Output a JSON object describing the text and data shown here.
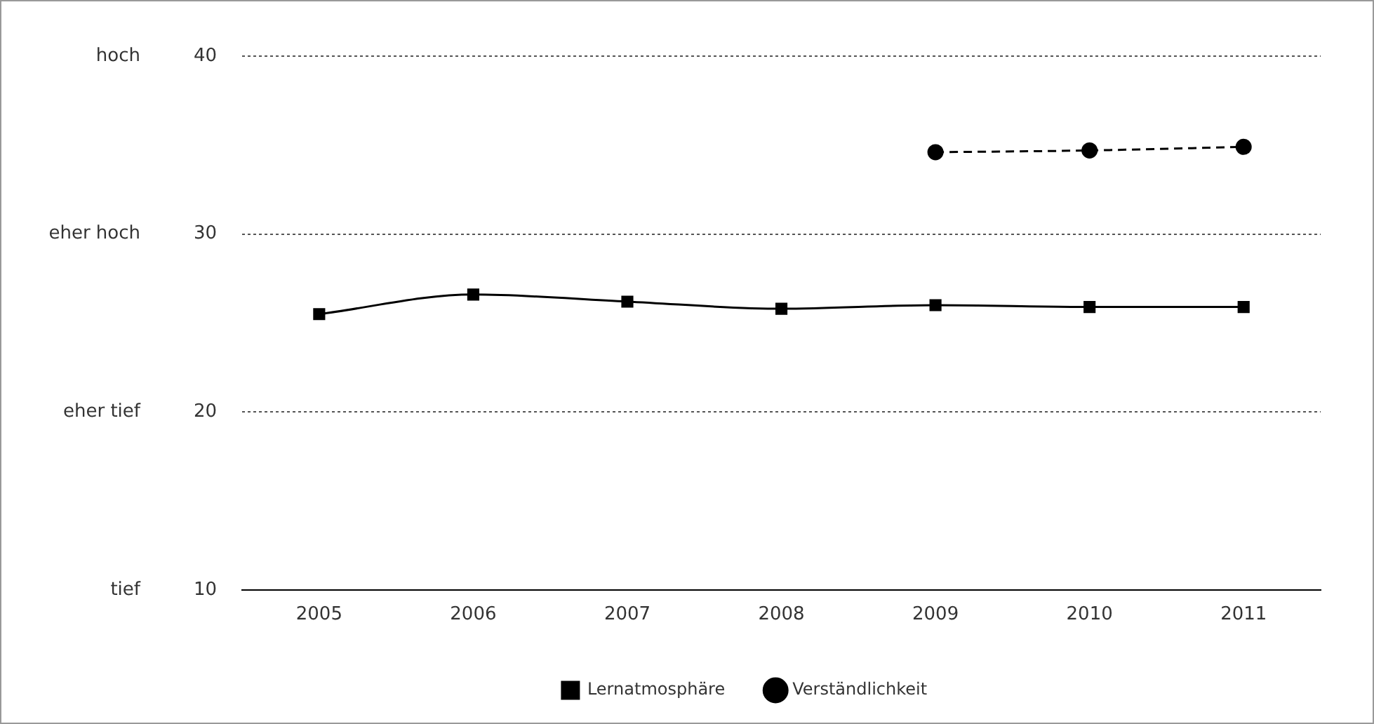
{
  "chart_data": {
    "type": "line",
    "categories": [
      "2005",
      "2006",
      "2007",
      "2008",
      "2009",
      "2010",
      "2011"
    ],
    "series": [
      {
        "name": "Lernatmosphäre",
        "color": "#000000",
        "marker": "square",
        "line_style": "solid",
        "values": [
          25.5,
          26.6,
          26.2,
          25.8,
          26.0,
          25.9,
          25.9
        ]
      },
      {
        "name": "Verständlichkeit",
        "color": "#000000",
        "marker": "circle",
        "line_style": "dashed",
        "values": [
          null,
          null,
          null,
          null,
          34.6,
          34.7,
          34.9
        ]
      }
    ],
    "ylim": [
      10,
      40
    ],
    "yticks": [
      10,
      20,
      30,
      40
    ],
    "annotations": [
      "hoch",
      "eher hoch",
      "eher tief",
      "tief"
    ],
    "grid": "y",
    "legend": "bottom"
  }
}
